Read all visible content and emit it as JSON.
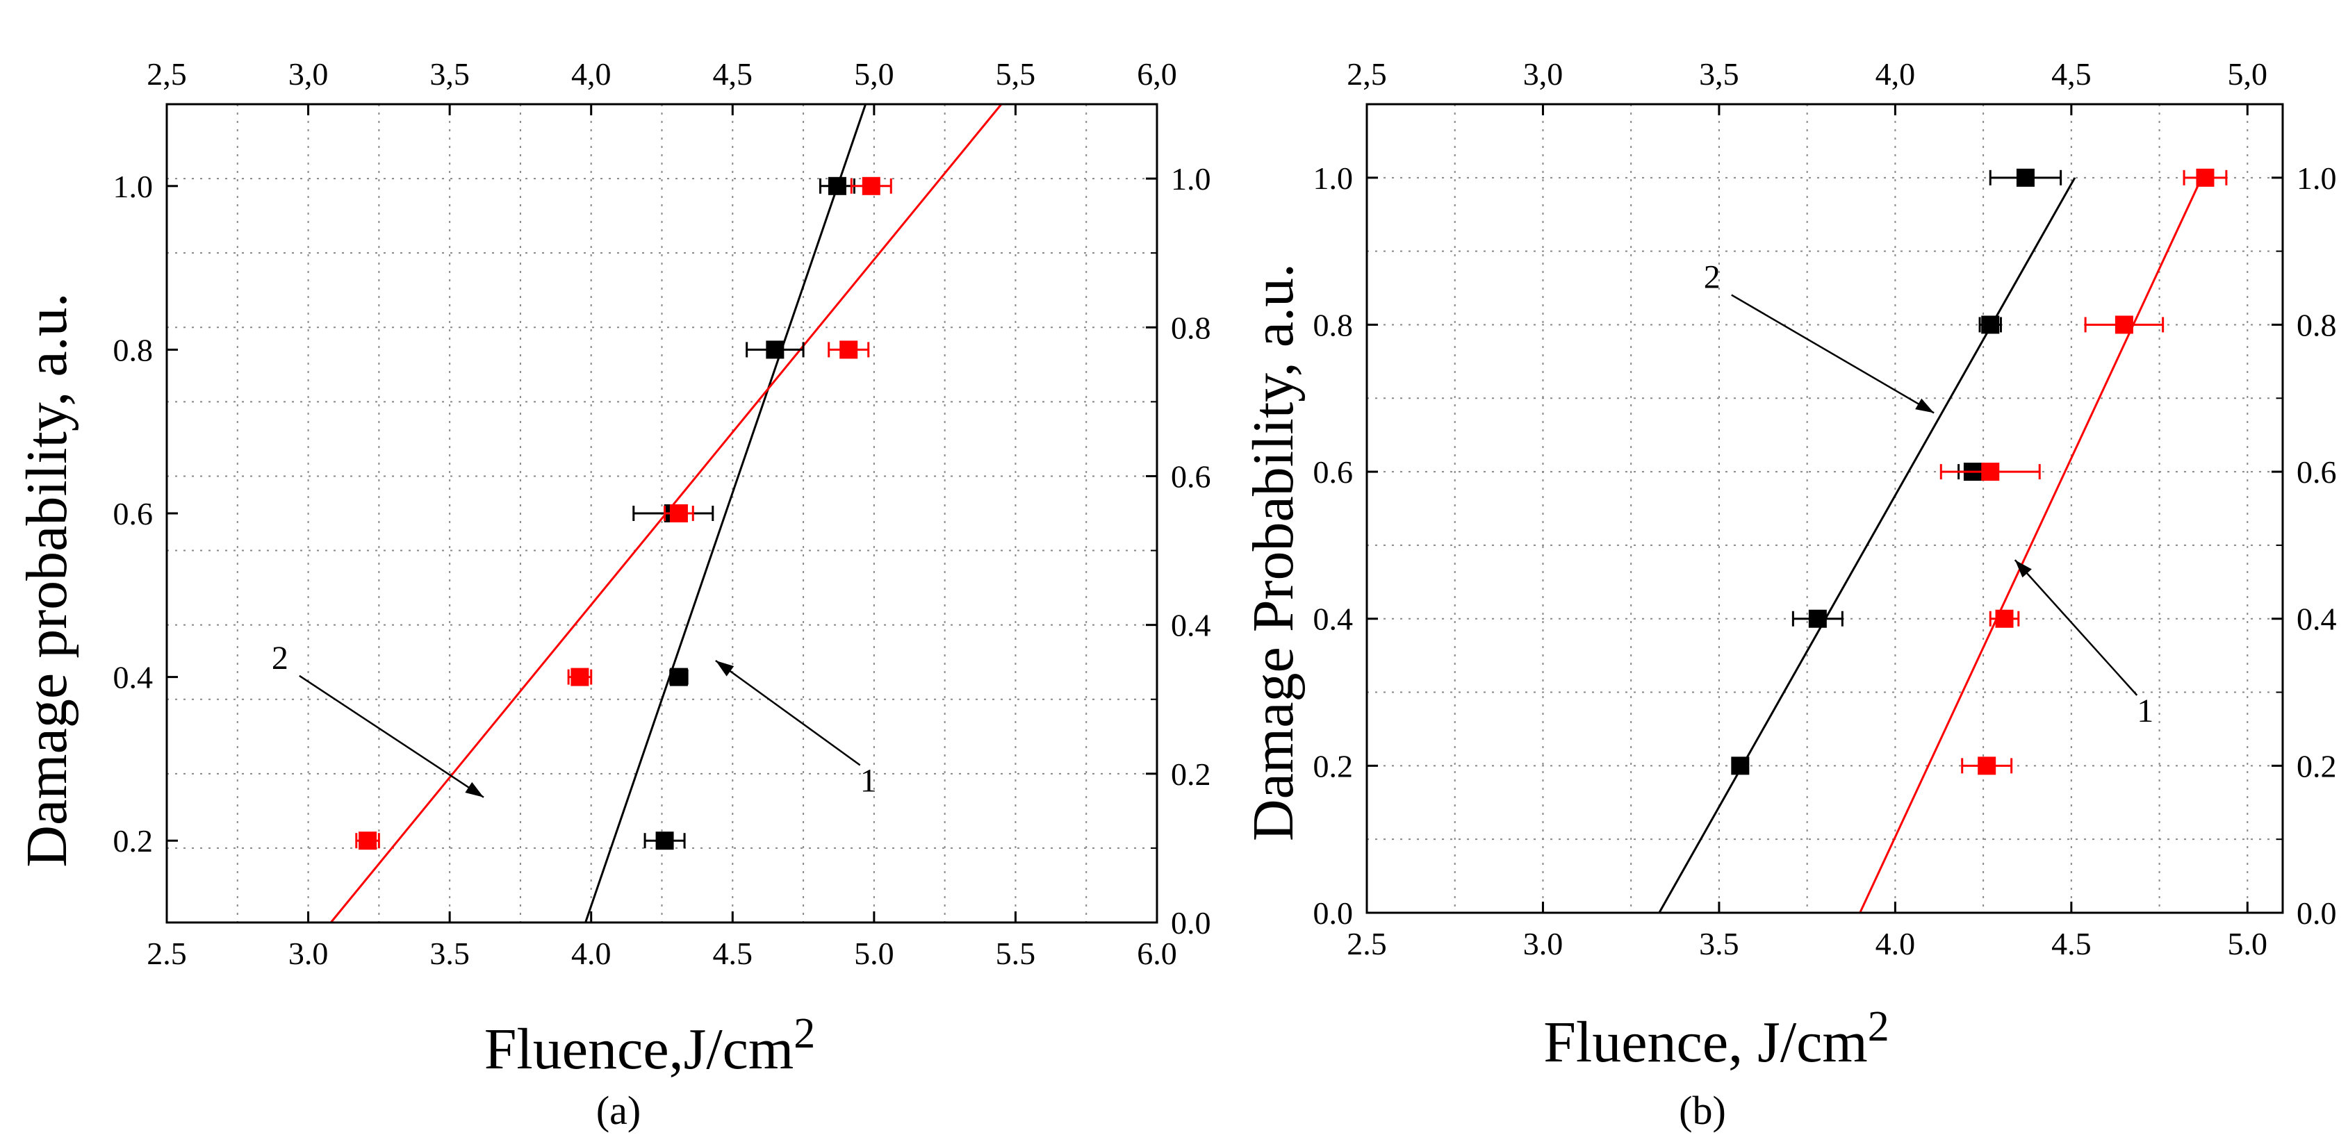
{
  "chart_data": [
    {
      "type": "scatter",
      "panel_label": "(a)",
      "xlabel": "Fluence,J/cm",
      "xlabel_sup": "2",
      "ylabel": "Damage probability, a.u.",
      "xlim": [
        2.5,
        6.0
      ],
      "ylim": [
        0.1,
        1.1
      ],
      "x_ticks": [
        "2.5",
        "3.0",
        "3.5",
        "4.0",
        "4.5",
        "5.0",
        "5.5",
        "6.0"
      ],
      "x_ticks_top": [
        "2,5",
        "3,0",
        "3,5",
        "4,0",
        "4,5",
        "5,0",
        "5,5",
        "6,0"
      ],
      "y_ticks": [
        "0.2",
        "0.4",
        "0.6",
        "0.8",
        "1.0"
      ],
      "y_ticks_right": [
        "0.0",
        "0.2",
        "0.4",
        "0.6",
        "0.8",
        "1.0"
      ],
      "right_axis_range": [
        0.0,
        1.1
      ],
      "grid": true,
      "series": [
        {
          "color": "#000000",
          "points": [
            {
              "x": 4.26,
              "y": 0.2,
              "err": 0.07
            },
            {
              "x": 4.31,
              "y": 0.4,
              "err": 0.03
            },
            {
              "x": 4.29,
              "y": 0.6,
              "err": 0.14
            },
            {
              "x": 4.65,
              "y": 0.8,
              "err": 0.1
            },
            {
              "x": 4.87,
              "y": 1.0,
              "err": 0.06
            }
          ],
          "fit": [
            [
              3.98,
              0.1
            ],
            [
              4.97,
              1.1
            ]
          ]
        },
        {
          "color": "#ff0000",
          "points": [
            {
              "x": 3.21,
              "y": 0.2,
              "err": 0.04
            },
            {
              "x": 3.96,
              "y": 0.4,
              "err": 0.04
            },
            {
              "x": 4.31,
              "y": 0.6,
              "err": 0.05
            },
            {
              "x": 4.91,
              "y": 0.8,
              "err": 0.07
            },
            {
              "x": 4.99,
              "y": 1.0,
              "err": 0.07
            }
          ],
          "fit": [
            [
              3.08,
              0.1
            ],
            [
              5.45,
              1.1
            ]
          ]
        }
      ],
      "annotations": [
        {
          "text": "2",
          "label_at": [
            2.9,
            0.41
          ],
          "arrow_to": [
            3.62,
            0.253
          ]
        },
        {
          "text": "1",
          "label_at": [
            4.98,
            0.26
          ],
          "arrow_to": [
            4.44,
            0.42
          ]
        }
      ]
    },
    {
      "type": "scatter",
      "panel_label": "(b)",
      "xlabel": "Fluence, J/cm",
      "xlabel_sup": "2",
      "ylabel": "Damage Probability, a.u.",
      "xlim": [
        2.5,
        5.1
      ],
      "ylim": [
        0.0,
        1.1
      ],
      "x_ticks": [
        "2.5",
        "3.0",
        "3.5",
        "4.0",
        "4.5",
        "5.0"
      ],
      "x_ticks_top": [
        "2,5",
        "3,0",
        "3,5",
        "4,0",
        "4,5",
        "5,0"
      ],
      "y_ticks": [
        "0.0",
        "0.2",
        "0.4",
        "0.6",
        "0.8",
        "1.0"
      ],
      "y_ticks_right": [
        "0.0",
        "0.2",
        "0.4",
        "0.6",
        "0.8",
        "1.0"
      ],
      "right_axis_range": [
        0.0,
        1.1
      ],
      "grid": true,
      "series": [
        {
          "color": "#000000",
          "points": [
            {
              "x": 3.56,
              "y": 0.2,
              "err": 0.02
            },
            {
              "x": 3.78,
              "y": 0.4,
              "err": 0.07
            },
            {
              "x": 4.22,
              "y": 0.6,
              "err": 0.04
            },
            {
              "x": 4.27,
              "y": 0.8,
              "err": 0.03
            },
            {
              "x": 4.37,
              "y": 1.0,
              "err": 0.1
            }
          ],
          "fit": [
            [
              3.33,
              0.0
            ],
            [
              4.51,
              1.0
            ]
          ]
        },
        {
          "color": "#ff0000",
          "points": [
            {
              "x": 4.26,
              "y": 0.2,
              "err": 0.07
            },
            {
              "x": 4.31,
              "y": 0.4,
              "err": 0.04
            },
            {
              "x": 4.27,
              "y": 0.6,
              "err": 0.14
            },
            {
              "x": 4.65,
              "y": 0.8,
              "err": 0.11
            },
            {
              "x": 4.88,
              "y": 1.0,
              "err": 0.06
            }
          ],
          "fit": [
            [
              3.9,
              0.0
            ],
            [
              4.87,
              1.0
            ]
          ]
        }
      ],
      "annotations": [
        {
          "text": "2",
          "label_at": [
            3.48,
            0.85
          ],
          "arrow_to": [
            4.11,
            0.68
          ]
        },
        {
          "text": "1",
          "label_at": [
            4.71,
            0.26
          ],
          "arrow_to": [
            4.34,
            0.48
          ]
        }
      ]
    }
  ]
}
